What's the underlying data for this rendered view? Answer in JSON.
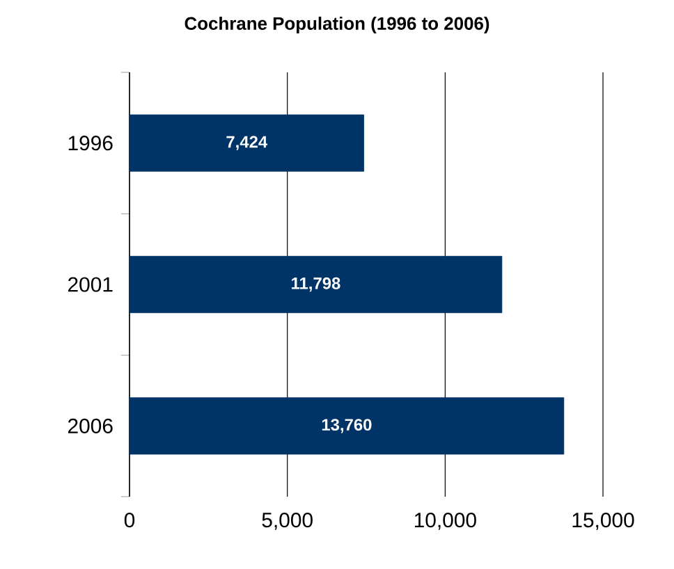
{
  "chart_data": {
    "type": "bar",
    "orientation": "horizontal",
    "title": "Cochrane Population (1996 to 2006)",
    "categories": [
      "1996",
      "2001",
      "2006"
    ],
    "values": [
      7424,
      11798,
      13760
    ],
    "value_labels": [
      "7,424",
      "11,798",
      "13,760"
    ],
    "color": "#003366",
    "xlim": [
      0,
      15000
    ],
    "xticks": [
      {
        "value": 0,
        "label": "0"
      },
      {
        "value": 5000,
        "label": "5,000"
      },
      {
        "value": 10000,
        "label": "10,000"
      },
      {
        "value": 15000,
        "label": "15,000"
      }
    ],
    "grid": "x"
  }
}
